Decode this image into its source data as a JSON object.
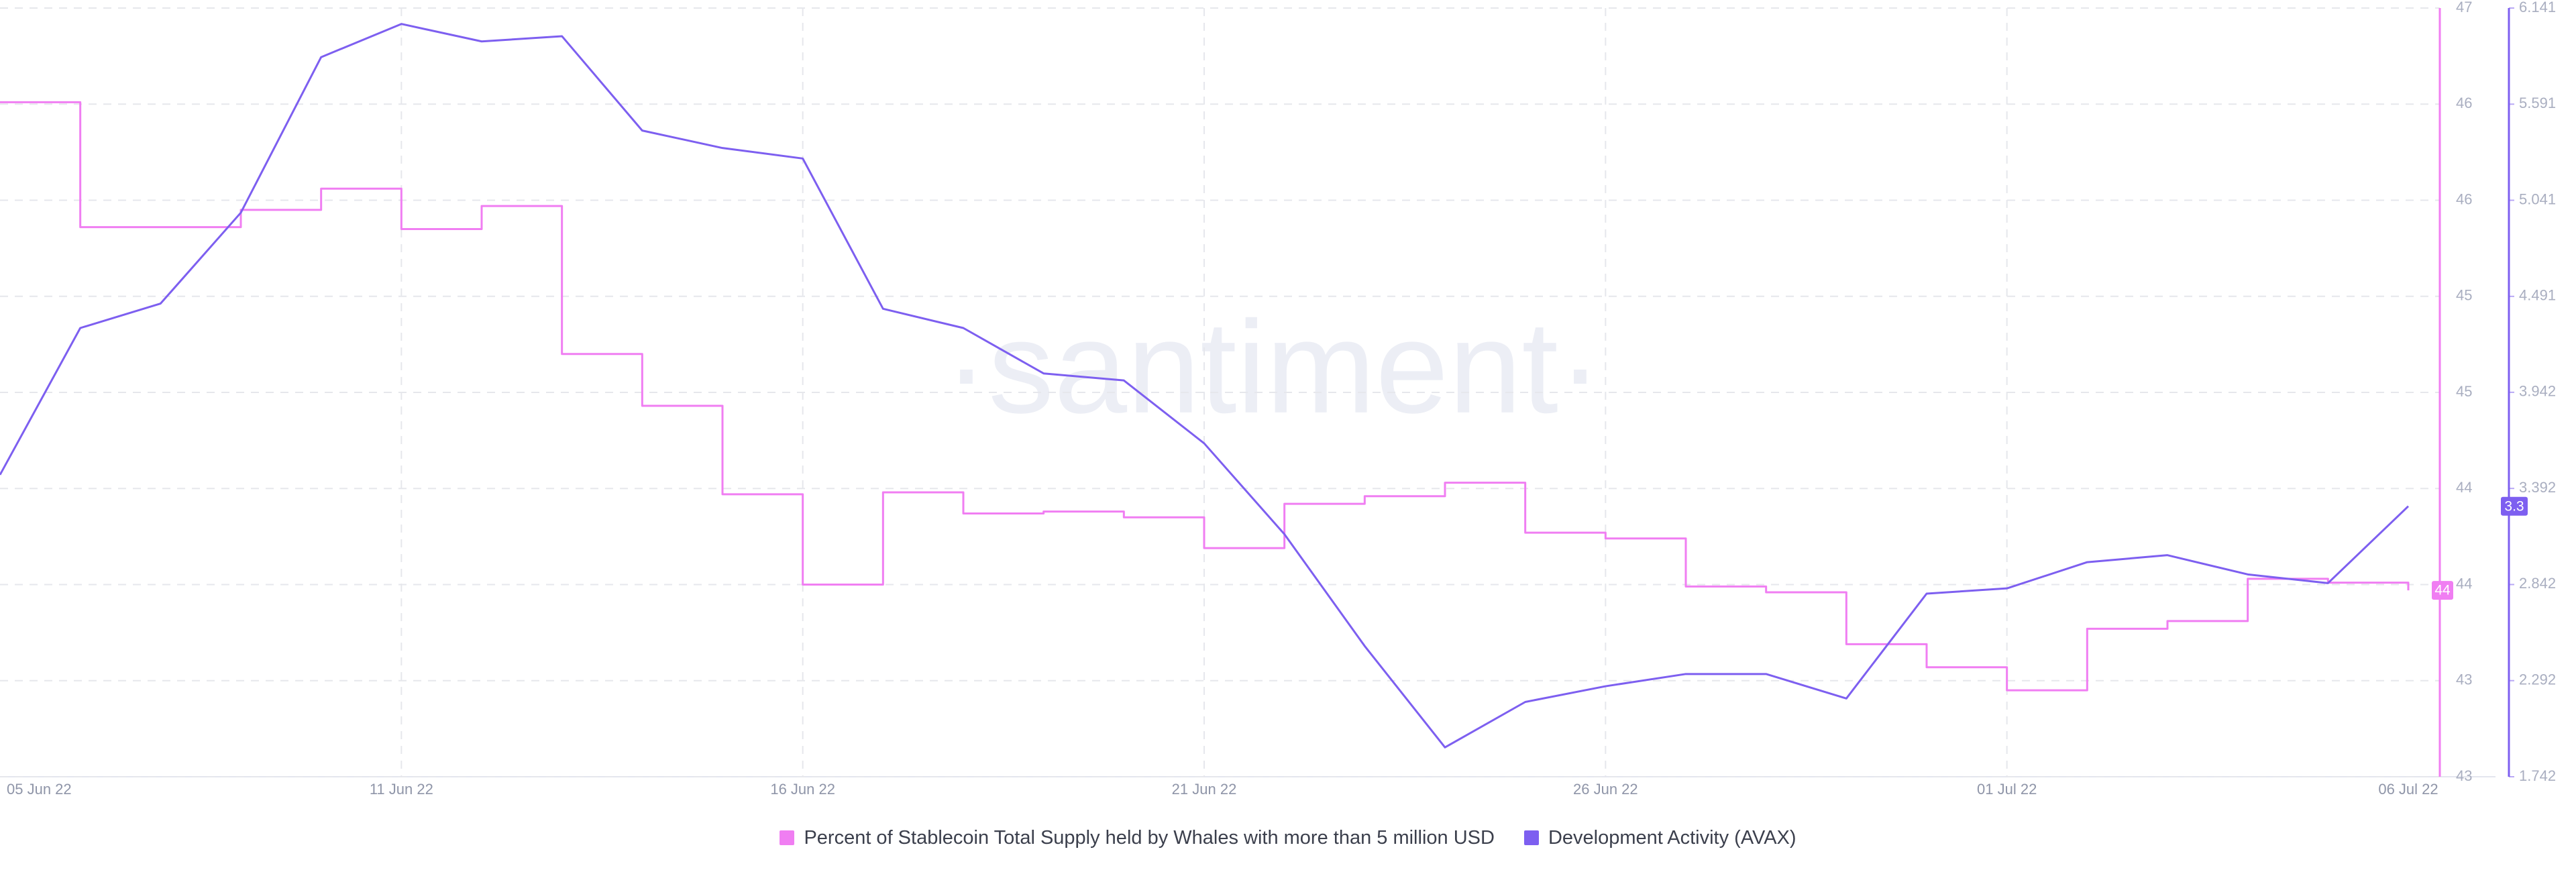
{
  "chart_data": {
    "type": "line",
    "watermark": "·santiment·",
    "x": [
      "2022-06-06",
      "2022-06-07",
      "2022-06-08",
      "2022-06-09",
      "2022-06-10",
      "2022-06-11",
      "2022-06-12",
      "2022-06-13",
      "2022-06-14",
      "2022-06-15",
      "2022-06-16",
      "2022-06-17",
      "2022-06-18",
      "2022-06-19",
      "2022-06-20",
      "2022-06-21",
      "2022-06-22",
      "2022-06-23",
      "2022-06-24",
      "2022-06-25",
      "2022-06-26",
      "2022-06-27",
      "2022-06-28",
      "2022-06-29",
      "2022-06-30",
      "2022-07-01",
      "2022-07-02",
      "2022-07-03",
      "2022-07-04",
      "2022-07-05",
      "2022-07-06"
    ],
    "xlim": [
      "2022-06-06",
      "2022-07-06"
    ],
    "xticks": [
      {
        "value": "2022-06-05",
        "label": "05 Jun 22"
      },
      {
        "value": "2022-06-11",
        "label": "11 Jun 22"
      },
      {
        "value": "2022-06-16",
        "label": "16 Jun 22"
      },
      {
        "value": "2022-06-21",
        "label": "21 Jun 22"
      },
      {
        "value": "2022-06-26",
        "label": "26 Jun 22"
      },
      {
        "value": "2022-07-01",
        "label": "01 Jul 22"
      },
      {
        "value": "2022-07-06",
        "label": "06 Jul 22"
      }
    ],
    "ylim": [
      43,
      47
    ],
    "yticks": [
      43,
      {
        "value": 43.5,
        "label": "43"
      },
      44,
      {
        "value": 44.5,
        "label": "44"
      },
      45,
      {
        "value": 45.5,
        "label": "45"
      },
      46,
      {
        "value": 46.5,
        "label": "46"
      },
      47
    ],
    "y2lim": [
      1.742,
      6.141
    ],
    "y2ticks": [
      1.742,
      2.292,
      2.842,
      3.392,
      3.942,
      4.491,
      5.041,
      5.591,
      6.141
    ],
    "grid": true,
    "legend": "bottom",
    "series": [
      {
        "name": "Percent of Stablecoin Total Supply held by Whales with more than 5 million USD",
        "color": "#f07ef2",
        "axis": "y",
        "step": true,
        "values": [
          46.51,
          45.86,
          45.86,
          45.95,
          46.06,
          45.85,
          45.97,
          45.2,
          44.93,
          44.47,
          44.0,
          44.48,
          44.37,
          44.38,
          44.35,
          44.19,
          44.42,
          44.46,
          44.53,
          44.27,
          44.24,
          43.99,
          43.96,
          43.69,
          43.57,
          43.45,
          43.77,
          43.81,
          44.03,
          44.01,
          43.97
        ],
        "last_value_label": "44"
      },
      {
        "name": "Development Activity (AVAX)",
        "color": "#7d5ff0",
        "axis": "y2",
        "step": false,
        "values": [
          3.47,
          4.31,
          4.45,
          4.97,
          5.86,
          6.05,
          5.95,
          5.98,
          5.44,
          5.34,
          5.28,
          4.42,
          4.31,
          4.05,
          4.01,
          3.65,
          3.13,
          2.49,
          1.91,
          2.17,
          2.26,
          2.33,
          2.33,
          2.19,
          2.79,
          2.82,
          2.97,
          3.01,
          2.9,
          2.85,
          3.29
        ],
        "last_value_label": "3.3"
      }
    ]
  }
}
